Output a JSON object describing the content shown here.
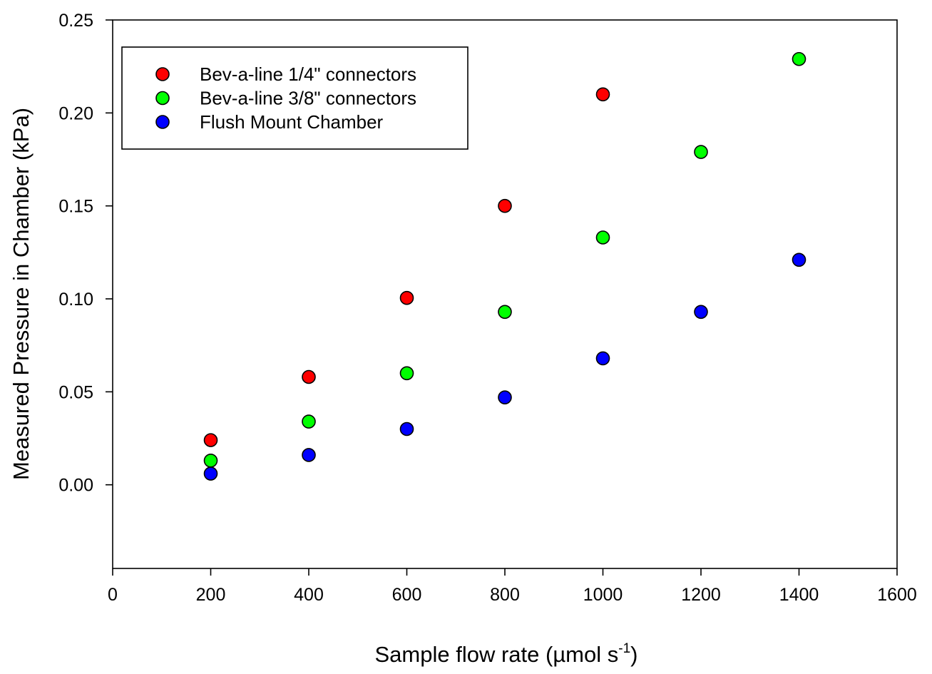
{
  "chart_data": {
    "type": "scatter",
    "title": "",
    "xlabel": "Sample flow rate (µmol s",
    "xlabel_superscript": "-1",
    "xlabel_suffix": ")",
    "ylabel": "Measured Pressure in Chamber (kPa)",
    "xlim": [
      0,
      1600
    ],
    "ylim": [
      -0.045,
      0.25
    ],
    "x_ticks": [
      "0",
      "200",
      "400",
      "600",
      "800",
      "1000",
      "1200",
      "1400",
      "1600"
    ],
    "x_tick_values": [
      0,
      200,
      400,
      600,
      800,
      1000,
      1200,
      1400,
      1600
    ],
    "y_ticks": [
      "0.00",
      "0.05",
      "0.10",
      "0.15",
      "0.20",
      "0.25"
    ],
    "y_tick_values": [
      0,
      0.05,
      0.1,
      0.15,
      0.2,
      0.25
    ],
    "grid": false,
    "legend_position": "top-left",
    "series": [
      {
        "name": "Bev-a-line 1/4\" connectors",
        "color": "#ff0000",
        "x": [
          200,
          400,
          600,
          800,
          1000
        ],
        "y": [
          0.024,
          0.058,
          0.1005,
          0.15,
          0.21
        ]
      },
      {
        "name": "Bev-a-line 3/8\" connectors",
        "color": "#00ff00",
        "x": [
          200,
          400,
          600,
          800,
          1000,
          1200,
          1400
        ],
        "y": [
          0.013,
          0.034,
          0.06,
          0.093,
          0.133,
          0.179,
          0.229
        ]
      },
      {
        "name": "Flush Mount Chamber",
        "color": "#0000ff",
        "x": [
          200,
          400,
          600,
          800,
          1000,
          1200,
          1400
        ],
        "y": [
          0.006,
          0.016,
          0.03,
          0.047,
          0.068,
          0.093,
          0.121
        ]
      }
    ]
  }
}
